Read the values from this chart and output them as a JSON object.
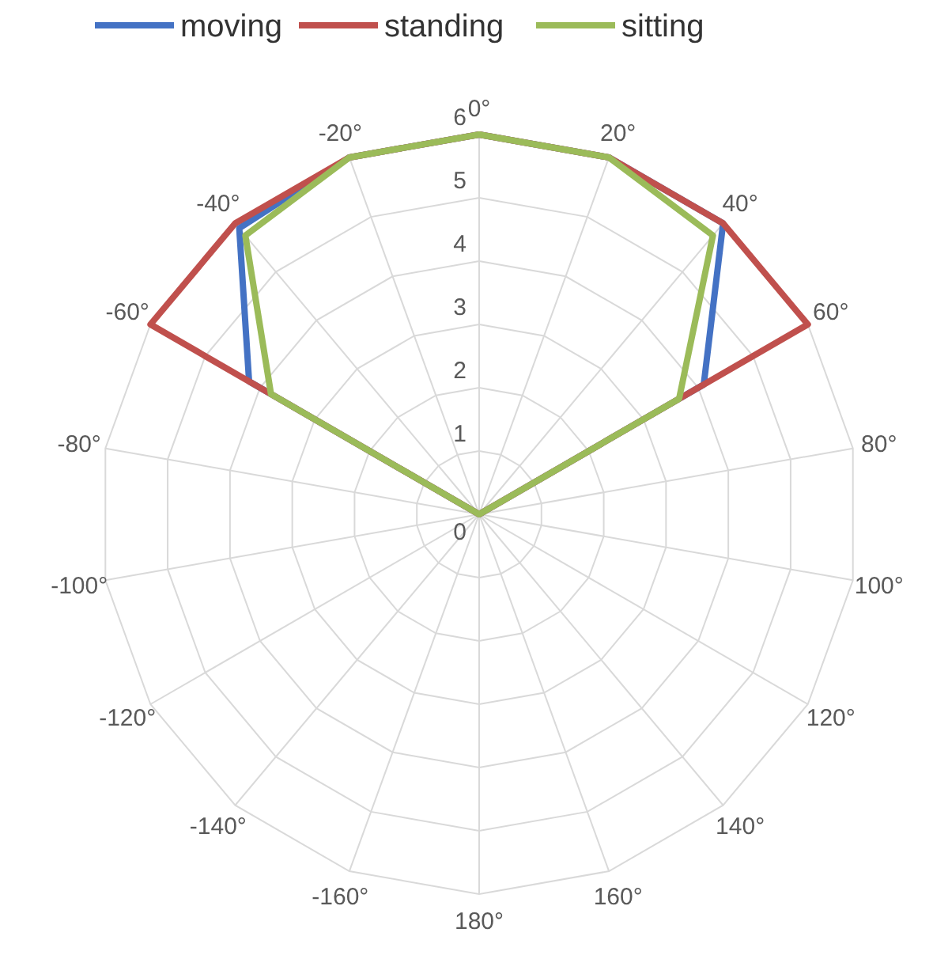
{
  "chart_data": {
    "type": "radar",
    "categories": [
      "0°",
      "20°",
      "40°",
      "60°",
      "80°",
      "100°",
      "120°",
      "140°",
      "160°",
      "180°",
      "-160°",
      "-140°",
      "-120°",
      "-100°",
      "-80°",
      "-60°",
      "-40°",
      "-20°"
    ],
    "series": [
      {
        "name": "moving",
        "color": "#4472c4",
        "values": [
          6,
          6,
          6,
          4.1,
          0,
          0,
          0,
          0,
          0,
          0,
          0,
          0,
          0,
          0,
          0,
          4.2,
          5.9,
          6
        ]
      },
      {
        "name": "standing",
        "color": "#c0504d",
        "values": [
          6,
          6,
          6,
          6,
          0,
          0,
          0,
          0,
          0,
          0,
          0,
          0,
          0,
          0,
          0,
          6,
          6,
          6
        ]
      },
      {
        "name": "sitting",
        "color": "#9bbb59",
        "values": [
          6,
          6,
          5.75,
          3.65,
          0,
          0,
          0,
          0,
          0,
          0,
          0,
          0,
          0,
          0,
          0,
          3.8,
          5.75,
          6
        ]
      }
    ],
    "ylim": [
      0,
      6
    ],
    "yticks": [
      0,
      1,
      2,
      3,
      4,
      5,
      6
    ],
    "grid": true,
    "legend": "top"
  }
}
